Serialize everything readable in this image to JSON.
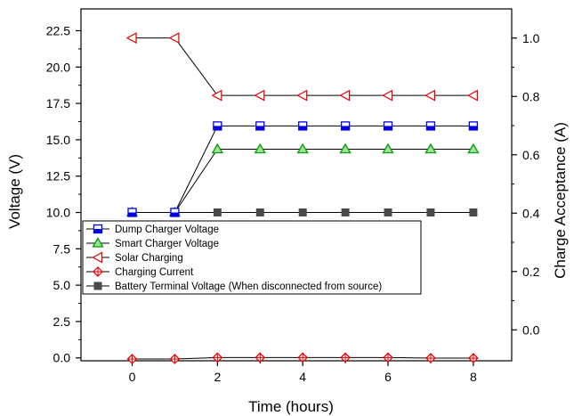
{
  "chart_data": {
    "type": "line",
    "xlabel": "Time (hours)",
    "ylabel": "Voltage (V)",
    "y2label": "Charge Acceptance (A)",
    "xlim": [
      -1.2,
      8.9
    ],
    "ylim": [
      -0.2,
      24
    ],
    "y2lim": [
      -0.106,
      1.1
    ],
    "xticks": [
      0,
      2,
      4,
      6,
      8
    ],
    "yticks": [
      0.0,
      2.5,
      5.0,
      7.5,
      10.0,
      12.5,
      15.0,
      17.5,
      20.0,
      22.5
    ],
    "y2ticks": [
      0.0,
      0.2,
      0.4,
      0.6,
      0.8,
      1.0
    ],
    "x": [
      0,
      1,
      2,
      3,
      4,
      5,
      6,
      7,
      8
    ],
    "series": [
      {
        "name": "Dump Charger Voltage",
        "axis": "left",
        "marker": "square-half",
        "color": "#0000e6",
        "values": [
          10,
          10,
          15.95,
          15.95,
          15.95,
          15.95,
          15.95,
          15.95,
          15.95
        ]
      },
      {
        "name": "Smart Charger Voltage",
        "axis": "left",
        "marker": "triangle-up",
        "color": "#00a000",
        "values": [
          10,
          10,
          14.35,
          14.35,
          14.35,
          14.35,
          14.35,
          14.35,
          14.35
        ]
      },
      {
        "name": "Solar Charging",
        "axis": "left",
        "marker": "triangle-left",
        "color": "#e00000",
        "values": [
          22,
          22,
          18.05,
          18.05,
          18.05,
          18.05,
          18.05,
          18.05,
          18.05
        ]
      },
      {
        "name": "Charging Current",
        "axis": "right",
        "marker": "diamond-cross",
        "color": "#e00000",
        "values": [
          -0.1,
          -0.1,
          -0.095,
          -0.095,
          -0.095,
          -0.095,
          -0.095,
          -0.097,
          -0.097
        ]
      },
      {
        "name": "Battery Terminal Voltage (When disconnected from source)",
        "axis": "left",
        "marker": "square",
        "color": "#4a4a4a",
        "values": [
          10,
          10,
          10,
          10,
          10,
          10,
          10,
          10,
          10
        ]
      }
    ],
    "legend_position": "lower-left",
    "grid": false
  }
}
